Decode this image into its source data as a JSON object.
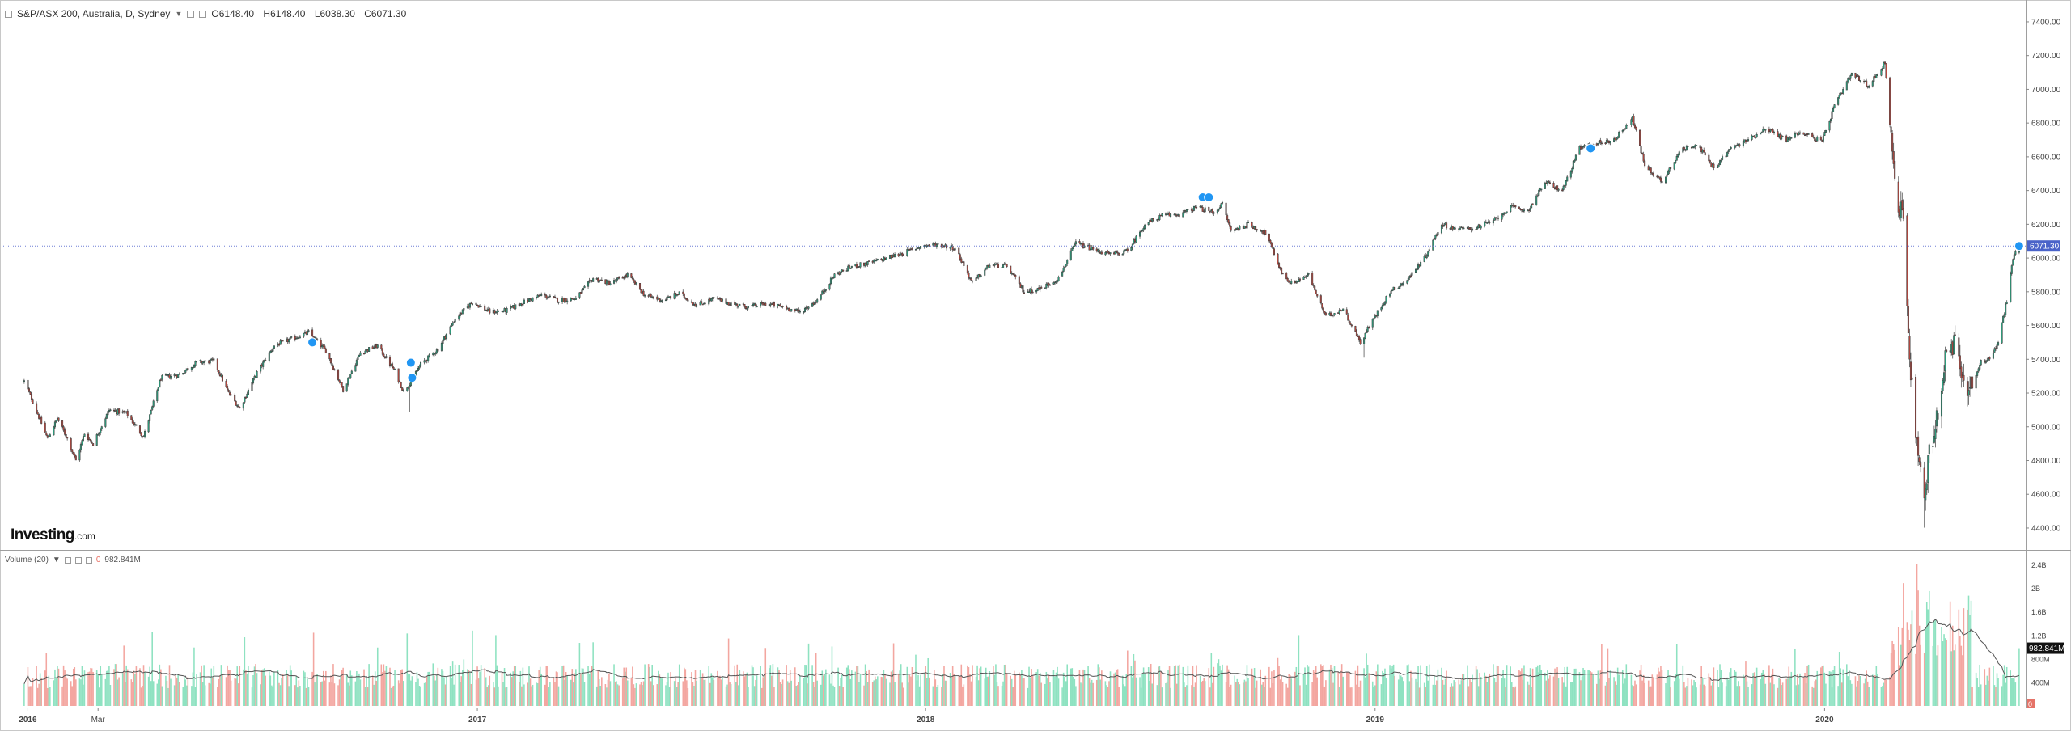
{
  "header": {
    "symbol_title": "S&P/ASX 200, Australia, D, Sydney",
    "open": "O6148.40",
    "high": "H6148.40",
    "low": "L6038.30",
    "close": "C6071.30"
  },
  "volume_panel": {
    "label": "Volume (20)",
    "zero": "0",
    "current": "982.841M"
  },
  "brand": {
    "name": "Investing",
    "suffix": ".com"
  },
  "price_tag": "6071.30",
  "volume_tag": "982.841M",
  "volume_zero_tag": "0",
  "colors": {
    "up": "#26a69a",
    "down": "#ef5350",
    "vol_up": "#8ee2c1",
    "vol_down": "#f3a6a0",
    "ma": "#555555",
    "price_line": "#6f7fd6",
    "marker": "#2196f3"
  },
  "chart_data": [
    {
      "type": "line",
      "title": "S&P/ASX 200, Australia, D, Sydney",
      "xlabel": "",
      "ylabel": "",
      "x_ticks": [
        "2016",
        "Mar",
        "2017",
        "2018",
        "2019",
        "2020"
      ],
      "y_ticks": [
        4400,
        4600,
        4800,
        5000,
        5200,
        5400,
        5600,
        5800,
        6000,
        6200,
        6400,
        6600,
        6800,
        7000,
        7200,
        7400
      ],
      "y_tick_labels": [
        "4400.00",
        "4600.00",
        "4800.00",
        "5000.00",
        "5200.00",
        "5400.00",
        "5600.00",
        "5800.00",
        "6000.00",
        "6200.00",
        "6400.00",
        "6600.00",
        "6800.00",
        "7000.00",
        "7200.00",
        "7400.00"
      ],
      "ylim": [
        4280,
        7510
      ],
      "current_price": 6071.3,
      "series": [
        {
          "values_daily_close_anchors": [
            [
              "2016-01-01",
              5270
            ],
            [
              "2016-01-08",
              5150
            ],
            [
              "2016-01-20",
              4930
            ],
            [
              "2016-01-28",
              5050
            ],
            [
              "2016-02-05",
              4930
            ],
            [
              "2016-02-12",
              4800
            ],
            [
              "2016-02-19",
              4960
            ],
            [
              "2016-02-26",
              4900
            ],
            [
              "2016-03-10",
              5100
            ],
            [
              "2016-03-24",
              5080
            ],
            [
              "2016-04-07",
              4940
            ],
            [
              "2016-04-21",
              5290
            ],
            [
              "2016-05-06",
              5310
            ],
            [
              "2016-05-20",
              5380
            ],
            [
              "2016-06-03",
              5390
            ],
            [
              "2016-06-15",
              5200
            ],
            [
              "2016-06-24",
              5110
            ],
            [
              "2016-07-08",
              5320
            ],
            [
              "2016-07-22",
              5480
            ],
            [
              "2016-08-05",
              5520
            ],
            [
              "2016-08-19",
              5560
            ],
            [
              "2016-09-02",
              5450
            ],
            [
              "2016-09-16",
              5220
            ],
            [
              "2016-09-30",
              5440
            ],
            [
              "2016-10-14",
              5480
            ],
            [
              "2016-10-28",
              5330
            ],
            [
              "2016-11-04",
              5210
            ],
            [
              "2016-11-09",
              5260
            ],
            [
              "2016-11-18",
              5370
            ],
            [
              "2016-12-02",
              5460
            ],
            [
              "2016-12-16",
              5640
            ],
            [
              "2016-12-30",
              5740
            ],
            [
              "2017-01-13",
              5680
            ],
            [
              "2017-01-27",
              5690
            ],
            [
              "2017-02-10",
              5740
            ],
            [
              "2017-02-24",
              5780
            ],
            [
              "2017-03-10",
              5750
            ],
            [
              "2017-03-24",
              5760
            ],
            [
              "2017-04-07",
              5880
            ],
            [
              "2017-04-21",
              5850
            ],
            [
              "2017-05-05",
              5900
            ],
            [
              "2017-05-19",
              5780
            ],
            [
              "2017-06-02",
              5750
            ],
            [
              "2017-06-16",
              5790
            ],
            [
              "2017-06-30",
              5720
            ],
            [
              "2017-07-14",
              5760
            ],
            [
              "2017-07-28",
              5730
            ],
            [
              "2017-08-11",
              5710
            ],
            [
              "2017-08-25",
              5730
            ],
            [
              "2017-09-08",
              5710
            ],
            [
              "2017-09-22",
              5680
            ],
            [
              "2017-10-06",
              5750
            ],
            [
              "2017-10-20",
              5900
            ],
            [
              "2017-11-03",
              5950
            ],
            [
              "2017-11-17",
              5970
            ],
            [
              "2017-12-01",
              6000
            ],
            [
              "2017-12-15",
              6030
            ],
            [
              "2017-12-29",
              6070
            ],
            [
              "2018-01-12",
              6080
            ],
            [
              "2018-01-26",
              6060
            ],
            [
              "2018-02-09",
              5850
            ],
            [
              "2018-02-23",
              5960
            ],
            [
              "2018-03-09",
              5950
            ],
            [
              "2018-03-23",
              5800
            ],
            [
              "2018-04-06",
              5820
            ],
            [
              "2018-04-20",
              5880
            ],
            [
              "2018-05-04",
              6090
            ],
            [
              "2018-05-18",
              6050
            ],
            [
              "2018-06-01",
              6020
            ],
            [
              "2018-06-15",
              6040
            ],
            [
              "2018-06-29",
              6200
            ],
            [
              "2018-07-13",
              6250
            ],
            [
              "2018-07-27",
              6260
            ],
            [
              "2018-08-10",
              6300
            ],
            [
              "2018-08-24",
              6270
            ],
            [
              "2018-08-31",
              6320
            ],
            [
              "2018-09-07",
              6160
            ],
            [
              "2018-09-21",
              6200
            ],
            [
              "2018-10-05",
              6150
            ],
            [
              "2018-10-19",
              5900
            ],
            [
              "2018-10-26",
              5850
            ],
            [
              "2018-11-09",
              5900
            ],
            [
              "2018-11-23",
              5650
            ],
            [
              "2018-12-07",
              5700
            ],
            [
              "2018-12-21",
              5500
            ],
            [
              "2018-12-31",
              5630
            ],
            [
              "2019-01-14",
              5800
            ],
            [
              "2019-01-28",
              5870
            ],
            [
              "2019-02-11",
              6000
            ],
            [
              "2019-02-25",
              6200
            ],
            [
              "2019-03-11",
              6170
            ],
            [
              "2019-03-25",
              6180
            ],
            [
              "2019-04-08",
              6220
            ],
            [
              "2019-04-22",
              6300
            ],
            [
              "2019-05-06",
              6280
            ],
            [
              "2019-05-20",
              6450
            ],
            [
              "2019-06-03",
              6400
            ],
            [
              "2019-06-17",
              6650
            ],
            [
              "2019-07-01",
              6680
            ],
            [
              "2019-07-15",
              6700
            ],
            [
              "2019-07-30",
              6830
            ],
            [
              "2019-08-09",
              6550
            ],
            [
              "2019-08-23",
              6450
            ],
            [
              "2019-09-06",
              6630
            ],
            [
              "2019-09-20",
              6680
            ],
            [
              "2019-10-04",
              6530
            ],
            [
              "2019-10-18",
              6650
            ],
            [
              "2019-11-01",
              6700
            ],
            [
              "2019-11-15",
              6770
            ],
            [
              "2019-12-02",
              6700
            ],
            [
              "2019-12-13",
              6750
            ],
            [
              "2019-12-31",
              6690
            ],
            [
              "2020-01-10",
              6900
            ],
            [
              "2020-01-24",
              7090
            ],
            [
              "2020-02-07",
              7020
            ],
            [
              "2020-02-20",
              7160
            ],
            [
              "2020-02-28",
              6440
            ],
            [
              "2020-03-06",
              6200
            ],
            [
              "2020-03-12",
              5300
            ],
            [
              "2020-03-16",
              5000
            ],
            [
              "2020-03-23",
              4550
            ],
            [
              "2020-03-27",
              4860
            ],
            [
              "2020-04-03",
              5070
            ],
            [
              "2020-04-09",
              5390
            ],
            [
              "2020-04-17",
              5490
            ],
            [
              "2020-04-24",
              5250
            ],
            [
              "2020-05-01",
              5240
            ],
            [
              "2020-05-08",
              5390
            ],
            [
              "2020-05-15",
              5400
            ],
            [
              "2020-05-22",
              5500
            ],
            [
              "2020-05-29",
              5750
            ],
            [
              "2020-06-03",
              6000
            ],
            [
              "2020-06-08",
              6071.3
            ]
          ]
        }
      ],
      "markers": [
        [
          "2016-08-22",
          5500
        ],
        [
          "2016-11-10",
          5380
        ],
        [
          "2016-11-11",
          5290
        ],
        [
          "2018-08-15",
          6360
        ],
        [
          "2018-08-20",
          6360
        ],
        [
          "2019-06-26",
          6650
        ],
        [
          "2020-06-08",
          6071.3
        ]
      ]
    },
    {
      "type": "bar",
      "title": "Volume (20)",
      "y_tick_labels": [
        "400M",
        "800M",
        "1.2B",
        "1.6B",
        "2B",
        "2.4B"
      ],
      "ylim": [
        0,
        2600000000
      ],
      "avg_volume": 550000000,
      "series": [
        {
          "name": "Volume",
          "current": 982841000
        }
      ]
    }
  ]
}
